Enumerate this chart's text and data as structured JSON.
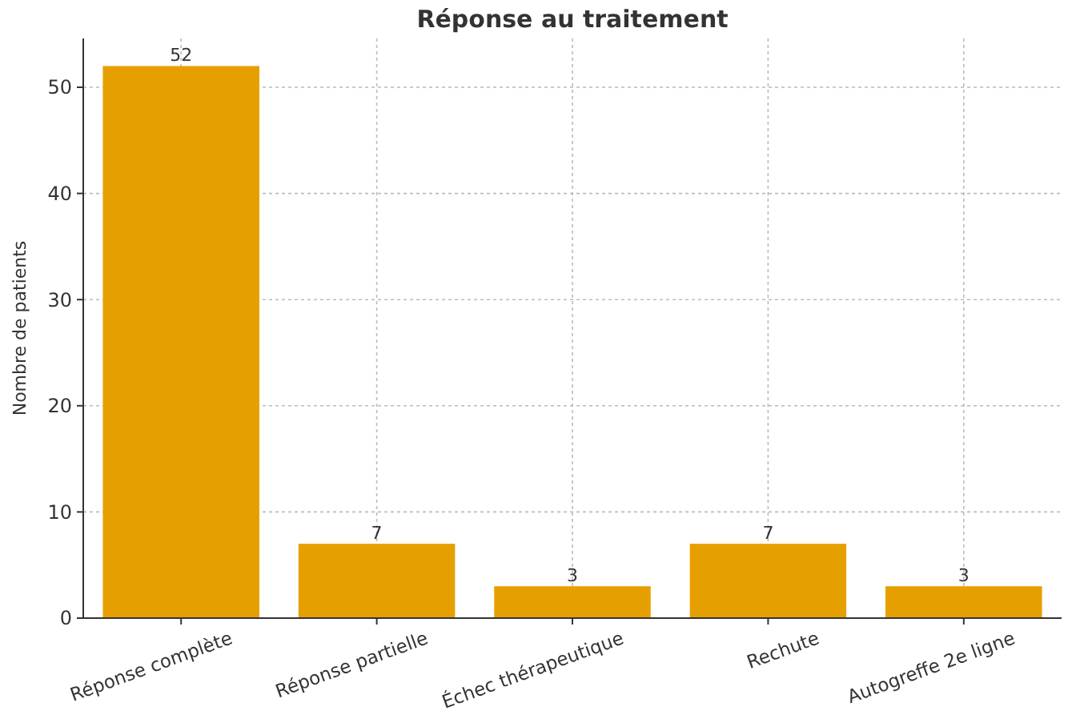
{
  "chart_data": {
    "type": "bar",
    "title": "Réponse au traitement",
    "ylabel": "Nombre de patients",
    "categories": [
      "Réponse complète",
      "Réponse partielle",
      "Échec thérapeutique",
      "Rechute",
      "Autogreffe 2e ligne"
    ],
    "values": [
      52,
      7,
      3,
      7,
      3
    ],
    "color": "#e69f00",
    "ylim": [
      0,
      54.6
    ],
    "yticks": [
      0,
      10,
      20,
      30,
      40,
      50
    ],
    "grid": true,
    "data_labels": true
  }
}
